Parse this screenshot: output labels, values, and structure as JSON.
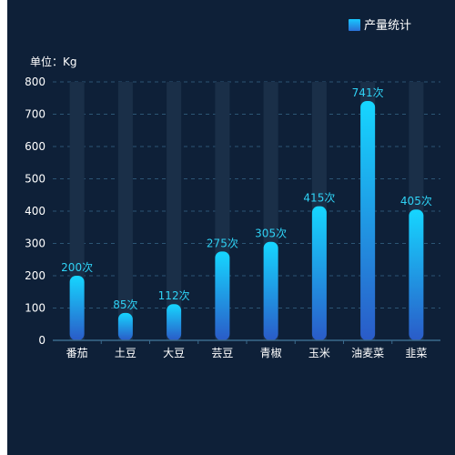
{
  "legend": {
    "label": "产量统计"
  },
  "unit_label": "单位：Kg",
  "colors": {
    "background": "#0e2038",
    "bar_top": "#16d6ff",
    "bar_bottom": "#2a5bc8",
    "track": "#1a2f48",
    "value_label": "#2fd2f5",
    "grid": "#2c5574",
    "axis": "#3a6a8c",
    "legend_swatch": "#1ea0f0"
  },
  "chart_data": {
    "type": "bar",
    "categories": [
      "番茄",
      "土豆",
      "大豆",
      "芸豆",
      "青椒",
      "玉米",
      "油麦菜",
      "韭菜"
    ],
    "values": [
      200,
      85,
      112,
      275,
      305,
      415,
      741,
      405
    ],
    "value_suffix": "次",
    "series": [
      {
        "name": "产量统计",
        "values": [
          200,
          85,
          112,
          275,
          305,
          415,
          741,
          405
        ]
      }
    ],
    "ylim": [
      0,
      800
    ],
    "yticks": [
      0,
      100,
      200,
      300,
      400,
      500,
      600,
      700,
      800
    ],
    "ylabel": "单位：Kg",
    "grid": true,
    "legend_position": "top-right"
  }
}
